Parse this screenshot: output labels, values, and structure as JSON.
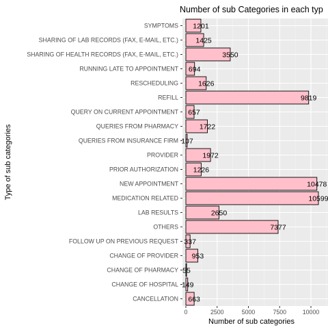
{
  "chart_data": {
    "type": "bar",
    "orientation": "horizontal",
    "title": "Number of sub Categories in each typ",
    "xlabel": "Number of sub categories",
    "ylabel": "Type of sub categories",
    "xlim": [
      0,
      11500
    ],
    "xticks": [
      0,
      2500,
      5000,
      7500,
      10000
    ],
    "grid": true,
    "bar_fill": "#FFC0CB",
    "bar_stroke": "#000000",
    "panel_background": "#EBEBEB",
    "categories": [
      "SYMPTOMS",
      "SHARING OF LAB RECORDS (FAX, E-MAIL, ETC.)",
      "SHARING OF HEALTH RECORDS (FAX, E-MAIL, ETC.)",
      "RUNNING LATE TO APPOINTMENT",
      "RESCHEDULING",
      "REFILL",
      "QUERY ON CURRENT APPOINTMENT",
      "QUERIES FROM PHARMACY",
      "QUERIES FROM INSURANCE FIRM",
      "PROVIDER",
      "PRIOR AUTHORIZATION",
      "NEW APPOINTMENT",
      "MEDICATION RELATED",
      "LAB RESULTS",
      "OTHERS",
      "FOLLOW UP ON PREVIOUS REQUEST",
      "CHANGE OF PROVIDER",
      "CHANGE OF PHARMACY",
      "CHANGE OF HOSPITAL",
      "CANCELLATION"
    ],
    "values": [
      1201,
      1425,
      3550,
      694,
      1626,
      9819,
      657,
      1722,
      107,
      1972,
      1226,
      10478,
      10599,
      2650,
      7377,
      337,
      953,
      55,
      149,
      663
    ],
    "value_labels": [
      "1201",
      "1425",
      "3550",
      "694",
      "1626",
      "9819",
      "657",
      "1722",
      "107",
      "1972",
      "1226",
      "10478",
      "10599",
      "2650",
      "7377",
      "337",
      "953",
      "55",
      "149",
      "663"
    ]
  }
}
